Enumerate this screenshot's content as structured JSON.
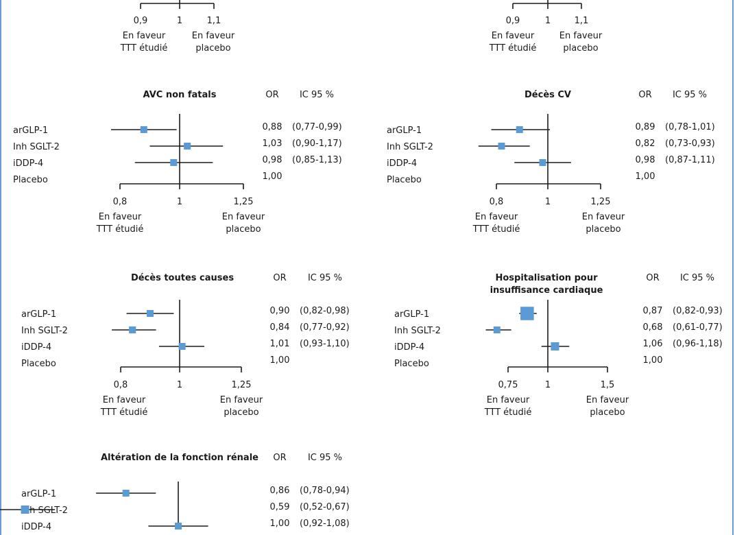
{
  "chart_data": [
    {
      "type": "forest",
      "ticks": [
        {
          "v": 0.9,
          "label": "0,9"
        },
        {
          "v": 1,
          "label": "1"
        },
        {
          "v": 1.1,
          "label": "1,1"
        }
      ],
      "xlim": [
        0.9,
        1.1
      ],
      "favor_left": [
        "En faveur",
        "TTT étudié"
      ],
      "favor_right": [
        "En faveur",
        "placebo"
      ]
    },
    {
      "type": "forest",
      "ticks": [
        {
          "v": 0.9,
          "label": "0,9"
        },
        {
          "v": 1,
          "label": "1"
        },
        {
          "v": 1.1,
          "label": "1,1"
        }
      ],
      "xlim": [
        0.9,
        1.1
      ],
      "favor_left": [
        "En faveur",
        "TTT étudié"
      ],
      "favor_right": [
        "En faveur",
        "placebo"
      ]
    },
    {
      "type": "forest",
      "title": [
        "AVC non fatals"
      ],
      "or_header": "OR",
      "ic_header": "IC 95 %",
      "rows": [
        {
          "label": "arGLP-1",
          "or": 0.88,
          "lo": 0.77,
          "hi": 0.99,
          "or_text": "0,88",
          "ci_text": "(0,77-0,99)"
        },
        {
          "label": "Inh SGLT-2",
          "or": 1.03,
          "lo": 0.9,
          "hi": 1.17,
          "or_text": "1,03",
          "ci_text": "(0,90-1,17)"
        },
        {
          "label": "iDDP-4",
          "or": 0.98,
          "lo": 0.85,
          "hi": 1.13,
          "or_text": "0,98",
          "ci_text": "(0,85-1,13)"
        },
        {
          "label": "Placebo",
          "or_text": "1,00"
        }
      ],
      "ticks": [
        {
          "v": 0.8,
          "label": "0,8"
        },
        {
          "v": 1,
          "label": "1"
        },
        {
          "v": 1.25,
          "label": "1,25"
        }
      ],
      "xlim": [
        0.8,
        1.25
      ],
      "favor_left": [
        "En faveur",
        "TTT étudié"
      ],
      "favor_right": [
        "En faveur",
        "placebo"
      ]
    },
    {
      "type": "forest",
      "title": [
        "Décès CV"
      ],
      "or_header": "OR",
      "ic_header": "IC 95 %",
      "rows": [
        {
          "label": "arGLP-1",
          "or": 0.89,
          "lo": 0.78,
          "hi": 1.01,
          "or_text": "0,89",
          "ci_text": "(0,78-1,01)"
        },
        {
          "label": "Inh SGLT-2",
          "or": 0.82,
          "lo": 0.73,
          "hi": 0.93,
          "or_text": "0,82",
          "ci_text": "(0,73-0,93)"
        },
        {
          "label": "iDDP-4",
          "or": 0.98,
          "lo": 0.87,
          "hi": 1.11,
          "or_text": "0,98",
          "ci_text": "(0,87-1,11)"
        },
        {
          "label": "Placebo",
          "or_text": "1,00"
        }
      ],
      "ticks": [
        {
          "v": 0.8,
          "label": "0,8"
        },
        {
          "v": 1,
          "label": "1"
        },
        {
          "v": 1.25,
          "label": "1,25"
        }
      ],
      "xlim": [
        0.8,
        1.25
      ],
      "favor_left": [
        "En faveur",
        "TTT étudié"
      ],
      "favor_right": [
        "En faveur",
        "placebo"
      ]
    },
    {
      "type": "forest",
      "title": [
        "Décès toutes causes"
      ],
      "or_header": "OR",
      "ic_header": "IC 95 %",
      "rows": [
        {
          "label": "arGLP-1",
          "or": 0.9,
          "lo": 0.82,
          "hi": 0.98,
          "or_text": "0,90",
          "ci_text": "(0,82-0,98)"
        },
        {
          "label": "Inh SGLT-2",
          "or": 0.84,
          "lo": 0.77,
          "hi": 0.92,
          "or_text": "0,84",
          "ci_text": "(0,77-0,92)"
        },
        {
          "label": "iDDP-4",
          "or": 1.01,
          "lo": 0.93,
          "hi": 1.1,
          "or_text": "1,01",
          "ci_text": "(0,93-1,10)"
        },
        {
          "label": "Placebo",
          "or_text": "1,00"
        }
      ],
      "ticks": [
        {
          "v": 0.8,
          "label": "0,8"
        },
        {
          "v": 1,
          "label": "1"
        },
        {
          "v": 1.25,
          "label": "1,25"
        }
      ],
      "xlim": [
        0.8,
        1.25
      ],
      "favor_left": [
        "En faveur",
        "TTT étudié"
      ],
      "favor_right": [
        "En faveur",
        "placebo"
      ]
    },
    {
      "type": "forest",
      "title": [
        "Hospitalisation pour",
        "insuffisance cardiaque"
      ],
      "or_header": "OR",
      "ic_header": "IC 95 %",
      "rows": [
        {
          "label": "arGLP-1",
          "or": 0.87,
          "lo": 0.82,
          "hi": 0.93,
          "or_text": "0,87",
          "ci_text": "(0,82-0,93)"
        },
        {
          "label": "Inh SGLT-2",
          "or": 0.68,
          "lo": 0.61,
          "hi": 0.77,
          "or_text": "0,68",
          "ci_text": "(0,61-0,77)"
        },
        {
          "label": "iDDP-4",
          "or": 1.06,
          "lo": 0.96,
          "hi": 1.18,
          "or_text": "1,06",
          "ci_text": "(0,96-1,18)"
        },
        {
          "label": "Placebo",
          "or_text": "1,00"
        }
      ],
      "ticks": [
        {
          "v": 0.75,
          "label": "0,75"
        },
        {
          "v": 1,
          "label": "1"
        },
        {
          "v": 1.5,
          "label": "1,5"
        }
      ],
      "xlim": [
        0.75,
        1.5
      ],
      "favor_left": [
        "En faveur",
        "TTT étudié"
      ],
      "favor_right": [
        "En faveur",
        "placebo"
      ]
    },
    {
      "type": "forest",
      "title": [
        "Altération de la fonction rénale"
      ],
      "or_header": "OR",
      "ic_header": "IC 95 %",
      "rows": [
        {
          "label": "arGLP-1",
          "or": 0.86,
          "lo": 0.78,
          "hi": 0.94,
          "or_text": "0,86",
          "ci_text": "(0,78-0,94)"
        },
        {
          "label": "Inh SGLT-2",
          "or": 0.59,
          "lo": 0.52,
          "hi": 0.67,
          "or_text": "0,59",
          "ci_text": "(0,52-0,67)"
        },
        {
          "label": "iDDP-4",
          "or": 1.0,
          "lo": 0.92,
          "hi": 1.08,
          "or_text": "1,00",
          "ci_text": "(0,92-1,08)"
        }
      ],
      "ticks": [],
      "xlim": [
        0.5,
        1.1
      ]
    }
  ],
  "colors": {
    "marker": "#5b9bd5",
    "line": "#1a1a1a",
    "frame": "#6d9ad8"
  }
}
